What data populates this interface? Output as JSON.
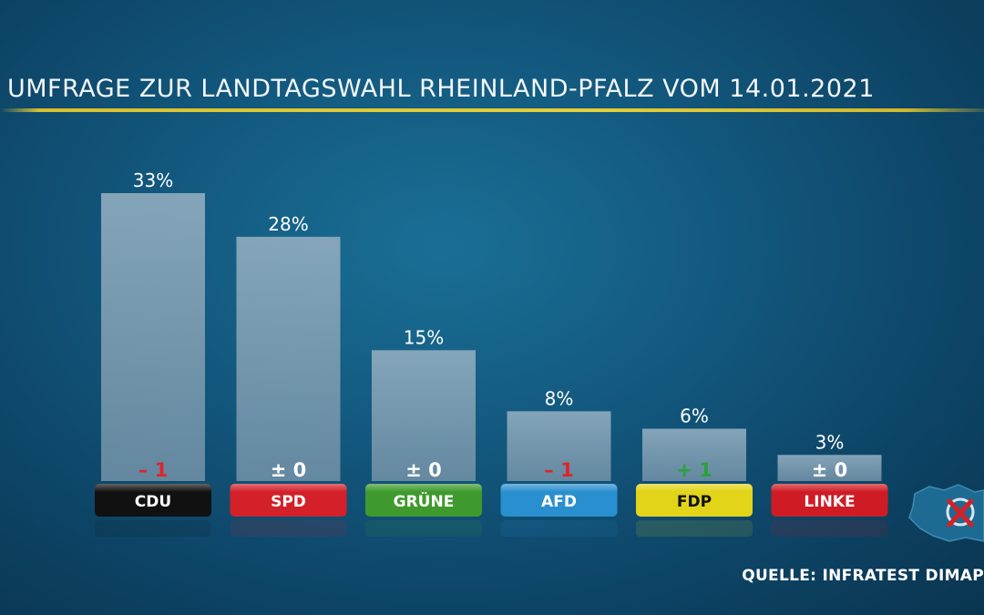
{
  "title": "UMFRAGE ZUR LANDTAGSWAHL RHEINLAND-PFALZ VOM 14.01.2021",
  "source": "QUELLE: INFRATEST DIMAP",
  "colors": {
    "bar": "#7f9fb4",
    "neg": "#e0242b",
    "pos": "#2aa13a",
    "neutral": "#ffffff"
  },
  "chart_data": {
    "type": "bar",
    "categories": [
      "CDU",
      "SPD",
      "GRÜNE",
      "AFD",
      "FDP",
      "LINKE"
    ],
    "values": [
      33,
      28,
      15,
      8,
      6,
      3
    ],
    "value_labels": [
      "33%",
      "28%",
      "15%",
      "8%",
      "6%",
      "3%"
    ],
    "change_labels": [
      "– 1",
      "± 0",
      "± 0",
      "– 1",
      "+ 1",
      "± 0"
    ],
    "change_sign": [
      "neg",
      "neutral",
      "neutral",
      "neg",
      "pos",
      "neutral"
    ],
    "category_colors": [
      "#111111",
      "#d42028",
      "#3f9a2e",
      "#2a8fcf",
      "#e2d419",
      "#cf1c24"
    ],
    "category_text_colors": [
      "#ffffff",
      "#ffffff",
      "#ffffff",
      "#ffffff",
      "#111111",
      "#ffffff"
    ],
    "ylim": [
      0,
      35
    ],
    "xlabel": "",
    "ylabel": ""
  }
}
